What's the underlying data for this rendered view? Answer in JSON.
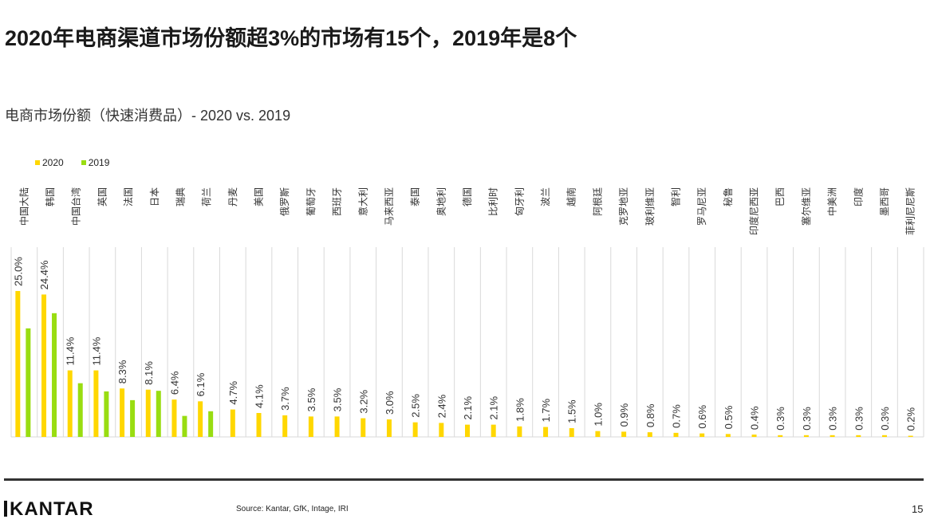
{
  "title": "2020年电商渠道市场份额超3%的市场有15个，2019年是8个",
  "subtitle": "电商市场份额（快速消费品）- 2020 vs. 2019",
  "footer": {
    "logo": "KANTAR",
    "source": "Source: Kantar, GfK, Intage, IRI",
    "page": "15"
  },
  "chart_data": {
    "type": "bar",
    "categories": [
      "中国大陆",
      "韩国",
      "中国台湾",
      "英国",
      "法国",
      "日本",
      "瑞典",
      "荷兰",
      "丹麦",
      "美国",
      "俄罗斯",
      "葡萄牙",
      "西班牙",
      "意大利",
      "马来西亚",
      "泰国",
      "奥地利",
      "德国",
      "比利时",
      "匈牙利",
      "波兰",
      "越南",
      "阿根廷",
      "克罗地亚",
      "玻利维亚",
      "智利",
      "罗马尼亚",
      "秘鲁",
      "印度尼西亚",
      "巴西",
      "塞尔维亚",
      "中美洲",
      "印度",
      "墨西哥",
      "菲利尼尼斯"
    ],
    "series": [
      {
        "name": "2020",
        "color": "#FFD700",
        "values": [
          25.0,
          24.4,
          11.4,
          11.4,
          8.3,
          8.1,
          6.4,
          6.1,
          4.7,
          4.1,
          3.7,
          3.5,
          3.5,
          3.2,
          3.0,
          2.5,
          2.4,
          2.1,
          2.1,
          1.8,
          1.7,
          1.5,
          1.0,
          0.9,
          0.8,
          0.7,
          0.6,
          0.5,
          0.4,
          0.3,
          0.3,
          0.3,
          0.3,
          0.3,
          0.2
        ],
        "labels": [
          "25.0%",
          "24.4%",
          "11.4%",
          "11.4%",
          "8.3%",
          "8.1%",
          "6.4%",
          "6.1%",
          "4.7%",
          "4.1%",
          "3.7%",
          "3.5%",
          "3.5%",
          "3.2%",
          "3.0%",
          "2.5%",
          "2.4%",
          "2.1%",
          "2.1%",
          "1.8%",
          "1.7%",
          "1.5%",
          "1.0%",
          "0.9%",
          "0.8%",
          "0.7%",
          "0.6%",
          "0.5%",
          "0.4%",
          "0.3%",
          "0.3%",
          "0.3%",
          "0.3%",
          "0.3%",
          "0.2%"
        ]
      },
      {
        "name": "2019",
        "color": "#99DD11",
        "values": [
          18.6,
          21.2,
          9.2,
          7.8,
          6.3,
          7.9,
          3.6,
          4.4,
          null,
          null,
          null,
          null,
          null,
          null,
          null,
          null,
          null,
          null,
          null,
          null,
          null,
          null,
          null,
          null,
          null,
          null,
          null,
          null,
          null,
          null,
          null,
          null,
          null,
          null,
          null
        ]
      }
    ],
    "legend": "top-left",
    "grid": "vertical separators",
    "ylim": [
      0,
      25
    ]
  }
}
